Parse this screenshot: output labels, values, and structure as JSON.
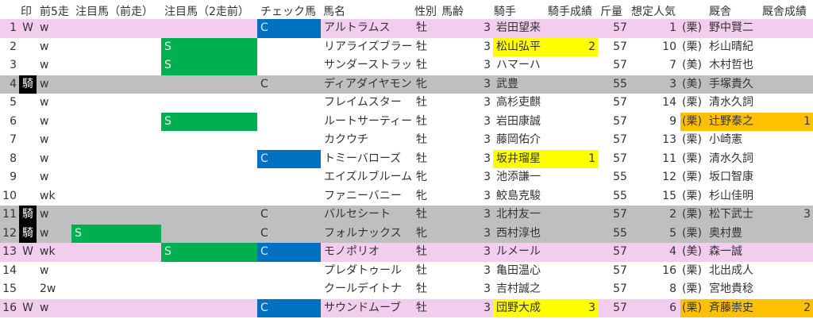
{
  "headers": {
    "mark": "印",
    "prev5": "前5走",
    "attention_prev": "注目馬（前走）",
    "attention_2prev": "注目馬（2走前）",
    "check": "チェック馬",
    "name": "馬名",
    "sex": "性別",
    "age": "馬齢",
    "jockey": "騎手",
    "jockey_result": "騎手成績",
    "weight": "斤量",
    "popularity": "想定人気",
    "trainer": "厩舎",
    "trainer_result": "厩舎成績"
  },
  "colors": {
    "pink": "#f2cdee",
    "gray": "#bfbfbf",
    "blue": "#0070c0",
    "green": "#00b050",
    "yellow": "#ffff00",
    "orange": "#ffc000"
  },
  "rows": [
    {
      "num": "1",
      "mark": "W",
      "prev5": "w",
      "att1": "",
      "att2": "",
      "check": "C",
      "name": "アルトラムス",
      "sex": "牡",
      "age": "3",
      "jockey": "岩田望来",
      "jres": "",
      "weight": "57",
      "pop": "1",
      "region": "(栗)",
      "trainer": "野中賢二",
      "tres": "",
      "row_style": "pink",
      "check_style": "blue"
    },
    {
      "num": "2",
      "mark": "",
      "prev5": "w",
      "att1": "",
      "att2": "S",
      "check": "",
      "name": "リアライズブラーヴ",
      "sex": "牡",
      "age": "3",
      "jockey": "松山弘平",
      "jres": "2",
      "weight": "57",
      "pop": "10",
      "region": "(栗)",
      "trainer": "杉山晴紀",
      "tres": "",
      "jockey_style": "yellow"
    },
    {
      "num": "3",
      "mark": "",
      "prev5": "w",
      "att1": "",
      "att2": "S",
      "check": "",
      "name": "サンダーストラック",
      "sex": "牡",
      "age": "3",
      "jockey": "ハマーハ",
      "jres": "",
      "weight": "57",
      "pop": "7",
      "region": "(美)",
      "trainer": "木村哲也",
      "tres": ""
    },
    {
      "num": "4",
      "mark": "騎",
      "prev5": "w",
      "att1": "",
      "att2": "",
      "check": "C",
      "name": "ディアダイヤモンド",
      "sex": "牝",
      "age": "3",
      "jockey": "武豊",
      "jres": "",
      "weight": "55",
      "pop": "3",
      "region": "(美)",
      "trainer": "手塚貴久",
      "tres": "",
      "row_style": "gray"
    },
    {
      "num": "5",
      "mark": "",
      "prev5": "w",
      "att1": "",
      "att2": "",
      "check": "",
      "name": "フレイムスター",
      "sex": "牡",
      "age": "3",
      "jockey": "高杉吏麒",
      "jres": "",
      "weight": "57",
      "pop": "14",
      "region": "(栗)",
      "trainer": "清水久詞",
      "tres": ""
    },
    {
      "num": "6",
      "mark": "",
      "prev5": "w",
      "att1": "",
      "att2": "S",
      "check": "",
      "name": "ルートサーティーン",
      "sex": "牡",
      "age": "3",
      "jockey": "岩田康誠",
      "jres": "",
      "weight": "57",
      "pop": "9",
      "region": "(栗)",
      "trainer": "辻野泰之",
      "tres": "1",
      "trainer_style": "orange"
    },
    {
      "num": "7",
      "mark": "",
      "prev5": "w",
      "att1": "",
      "att2": "",
      "check": "",
      "name": "カクウチ",
      "sex": "牡",
      "age": "3",
      "jockey": "藤岡佑介",
      "jres": "",
      "weight": "57",
      "pop": "13",
      "region": "(栗)",
      "trainer": "小崎憲",
      "tres": ""
    },
    {
      "num": "8",
      "mark": "",
      "prev5": "w",
      "att1": "",
      "att2": "",
      "check": "C",
      "name": "トミーバローズ",
      "sex": "牡",
      "age": "3",
      "jockey": "坂井瑠星",
      "jres": "1",
      "weight": "57",
      "pop": "11",
      "region": "(栗)",
      "trainer": "清水久詞",
      "tres": "",
      "check_style": "blue",
      "jockey_style": "yellow"
    },
    {
      "num": "9",
      "mark": "",
      "prev5": "w",
      "att1": "",
      "att2": "",
      "check": "",
      "name": "エイズルブルーム",
      "sex": "牝",
      "age": "3",
      "jockey": "池添謙一",
      "jres": "",
      "weight": "55",
      "pop": "12",
      "region": "(栗)",
      "trainer": "坂口智康",
      "tres": ""
    },
    {
      "num": "10",
      "mark": "",
      "prev5": "wk",
      "att1": "",
      "att2": "",
      "check": "",
      "name": "ファニーバニー",
      "sex": "牝",
      "age": "3",
      "jockey": "鮫島克駿",
      "jres": "",
      "weight": "55",
      "pop": "15",
      "region": "(栗)",
      "trainer": "杉山佳明",
      "tres": ""
    },
    {
      "num": "11",
      "mark": "騎",
      "prev5": "w",
      "att1": "",
      "att2": "",
      "check": "C",
      "name": "バルセシート",
      "sex": "牡",
      "age": "3",
      "jockey": "北村友一",
      "jres": "",
      "weight": "57",
      "pop": "2",
      "region": "(栗)",
      "trainer": "松下武士",
      "tres": "3",
      "row_style": "gray"
    },
    {
      "num": "12",
      "mark": "騎",
      "prev5": "w",
      "att1": "S",
      "att2": "",
      "check": "C",
      "name": "フォルナックス",
      "sex": "牝",
      "age": "3",
      "jockey": "西村淳也",
      "jres": "",
      "weight": "55",
      "pop": "5",
      "region": "(栗)",
      "trainer": "奥村豊",
      "tres": "",
      "row_style": "gray"
    },
    {
      "num": "13",
      "mark": "W",
      "prev5": "wk",
      "att1": "",
      "att2": "S",
      "check": "C",
      "name": "モノポリオ",
      "sex": "牡",
      "age": "3",
      "jockey": "ルメール",
      "jres": "",
      "weight": "57",
      "pop": "4",
      "region": "(美)",
      "trainer": "森一誠",
      "tres": "",
      "row_style": "pink",
      "check_style": "blue"
    },
    {
      "num": "14",
      "mark": "",
      "prev5": "w",
      "att1": "",
      "att2": "",
      "check": "",
      "name": "プレダトゥール",
      "sex": "牡",
      "age": "3",
      "jockey": "亀田温心",
      "jres": "",
      "weight": "57",
      "pop": "16",
      "region": "(栗)",
      "trainer": "北出成人",
      "tres": ""
    },
    {
      "num": "15",
      "mark": "",
      "prev5": "2w",
      "att1": "",
      "att2": "",
      "check": "",
      "name": "クールデイトナ",
      "sex": "牡",
      "age": "3",
      "jockey": "吉村誠之",
      "jres": "",
      "weight": "57",
      "pop": "8",
      "region": "(栗)",
      "trainer": "宮地貴稔",
      "tres": ""
    },
    {
      "num": "16",
      "mark": "W",
      "prev5": "w",
      "att1": "",
      "att2": "",
      "check": "C",
      "name": "サウンドムーブ",
      "sex": "牡",
      "age": "3",
      "jockey": "団野大成",
      "jres": "3",
      "weight": "57",
      "pop": "6",
      "region": "(栗)",
      "trainer": "斉藤崇史",
      "tres": "2",
      "row_style": "pink",
      "check_style": "blue",
      "jockey_style": "yellow",
      "trainer_style": "orange"
    }
  ]
}
